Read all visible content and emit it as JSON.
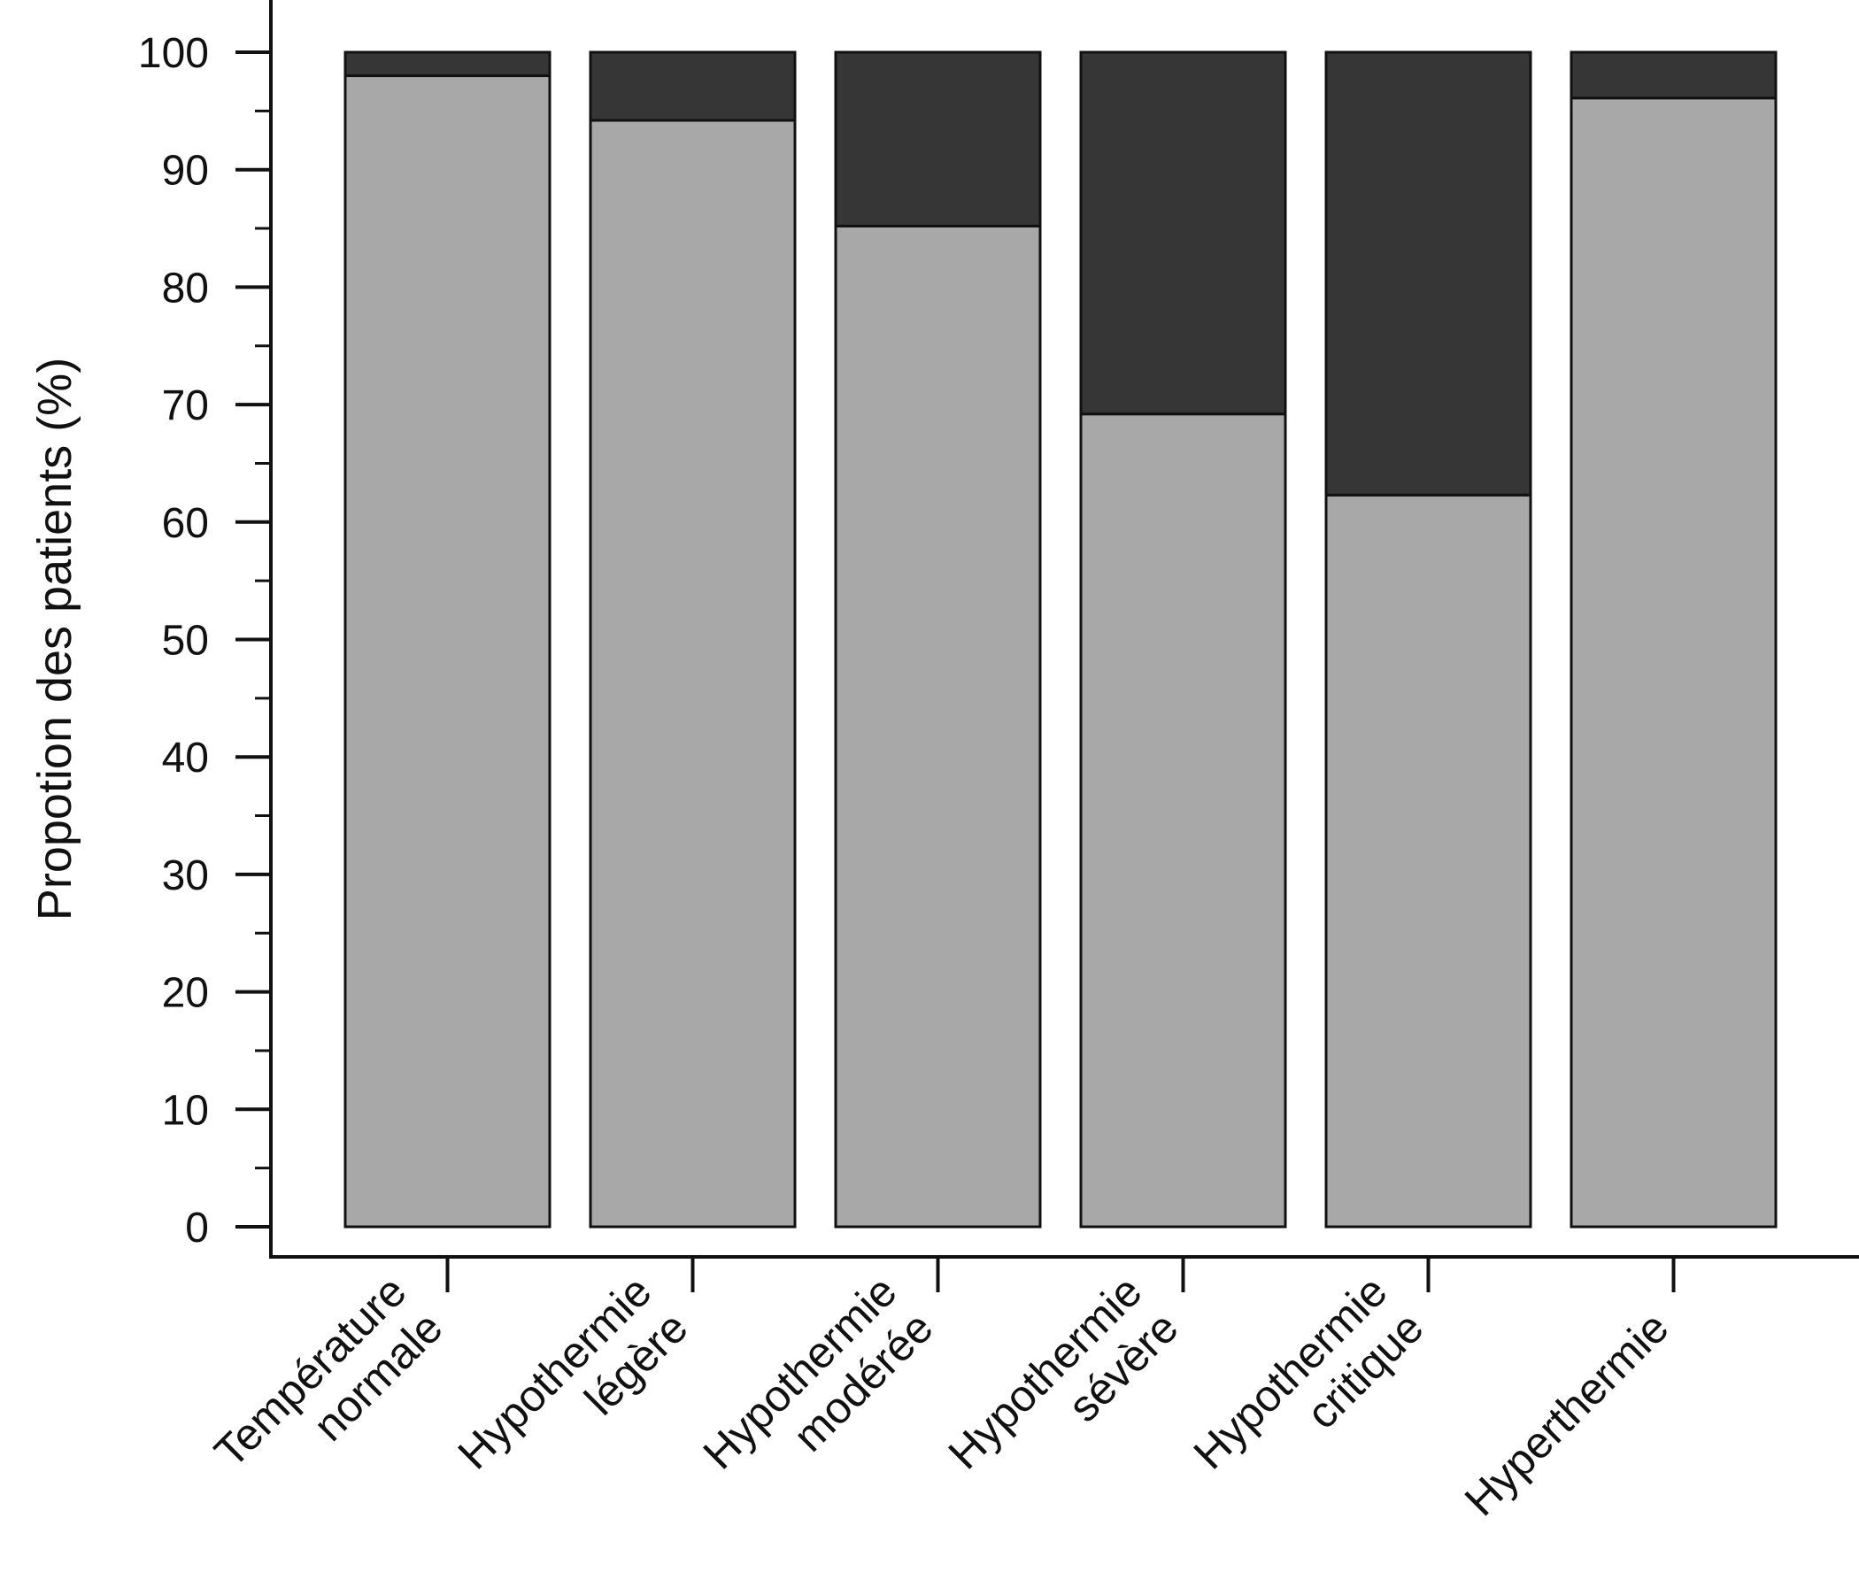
{
  "chart_data": {
    "type": "bar",
    "stacked": true,
    "ylabel": "Propotion des patients (%)",
    "ylim": [
      0,
      100
    ],
    "yticks": [
      0,
      10,
      20,
      30,
      40,
      50,
      60,
      70,
      80,
      90,
      100
    ],
    "categories": [
      [
        "Température",
        "normale"
      ],
      [
        "Hypothermie",
        "légère"
      ],
      [
        "Hypothermie",
        "modérée"
      ],
      [
        "Hypothermie",
        "sévère"
      ],
      [
        "Hypothermie",
        "critique"
      ],
      [
        "Hyperthermie"
      ]
    ],
    "series": [
      {
        "values": [
          98,
          94.2,
          85.2,
          69.2,
          62.3,
          96.1
        ],
        "color": "#a8a8a8"
      },
      {
        "values": [
          2,
          5.8,
          14.8,
          30.8,
          37.7,
          3.9
        ],
        "color": "#363636"
      }
    ],
    "grid": false,
    "legend": "none"
  }
}
